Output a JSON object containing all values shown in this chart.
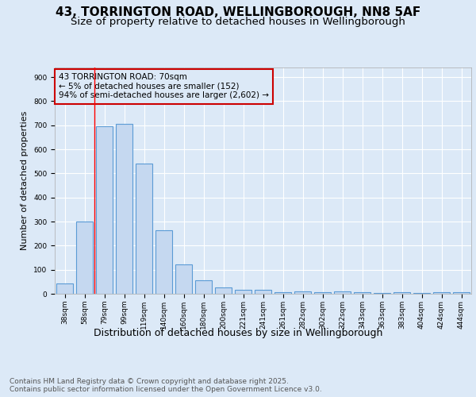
{
  "title1": "43, TORRINGTON ROAD, WELLINGBOROUGH, NN8 5AF",
  "title2": "Size of property relative to detached houses in Wellingborough",
  "xlabel": "Distribution of detached houses by size in Wellingborough",
  "ylabel": "Number of detached properties",
  "categories": [
    "38sqm",
    "58sqm",
    "79sqm",
    "99sqm",
    "119sqm",
    "140sqm",
    "160sqm",
    "180sqm",
    "200sqm",
    "221sqm",
    "241sqm",
    "261sqm",
    "282sqm",
    "302sqm",
    "322sqm",
    "343sqm",
    "363sqm",
    "383sqm",
    "404sqm",
    "424sqm",
    "444sqm"
  ],
  "values": [
    42,
    300,
    695,
    705,
    540,
    265,
    122,
    57,
    25,
    15,
    18,
    8,
    10,
    7,
    10,
    5,
    3,
    8,
    2,
    5,
    8
  ],
  "bar_color": "#c5d8f0",
  "bar_edge_color": "#5b9bd5",
  "bg_color": "#dce9f7",
  "grid_color": "#ffffff",
  "annotation_box_text": "43 TORRINGTON ROAD: 70sqm\n← 5% of detached houses are smaller (152)\n94% of semi-detached houses are larger (2,602) →",
  "annotation_box_color": "#cc0000",
  "ylim": [
    0,
    940
  ],
  "yticks": [
    0,
    100,
    200,
    300,
    400,
    500,
    600,
    700,
    800,
    900
  ],
  "footnote": "Contains HM Land Registry data © Crown copyright and database right 2025.\nContains public sector information licensed under the Open Government Licence v3.0.",
  "title1_fontsize": 11,
  "title2_fontsize": 9.5,
  "xlabel_fontsize": 9,
  "ylabel_fontsize": 8,
  "tick_fontsize": 6.5,
  "annot_fontsize": 7.5,
  "footnote_fontsize": 6.5
}
